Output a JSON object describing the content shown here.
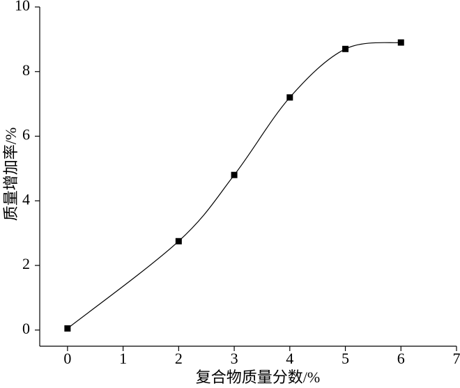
{
  "chart_data": {
    "type": "line",
    "x_label": "复合物质量分数/%",
    "y_label": "质量增加率/%",
    "x": [
      0,
      2,
      3,
      4,
      5,
      6
    ],
    "series": [
      {
        "color": "#000000",
        "values": [
          0.05,
          2.75,
          4.8,
          7.2,
          8.7,
          8.9
        ]
      }
    ],
    "xlim": [
      -0.5,
      7
    ],
    "xticks": [
      0,
      1,
      2,
      3,
      4,
      5,
      6,
      7
    ],
    "ylim": [
      -0.5,
      10
    ],
    "yticks": [
      0,
      2,
      4,
      6,
      8,
      10
    ],
    "smooth": true,
    "markers": "square"
  }
}
